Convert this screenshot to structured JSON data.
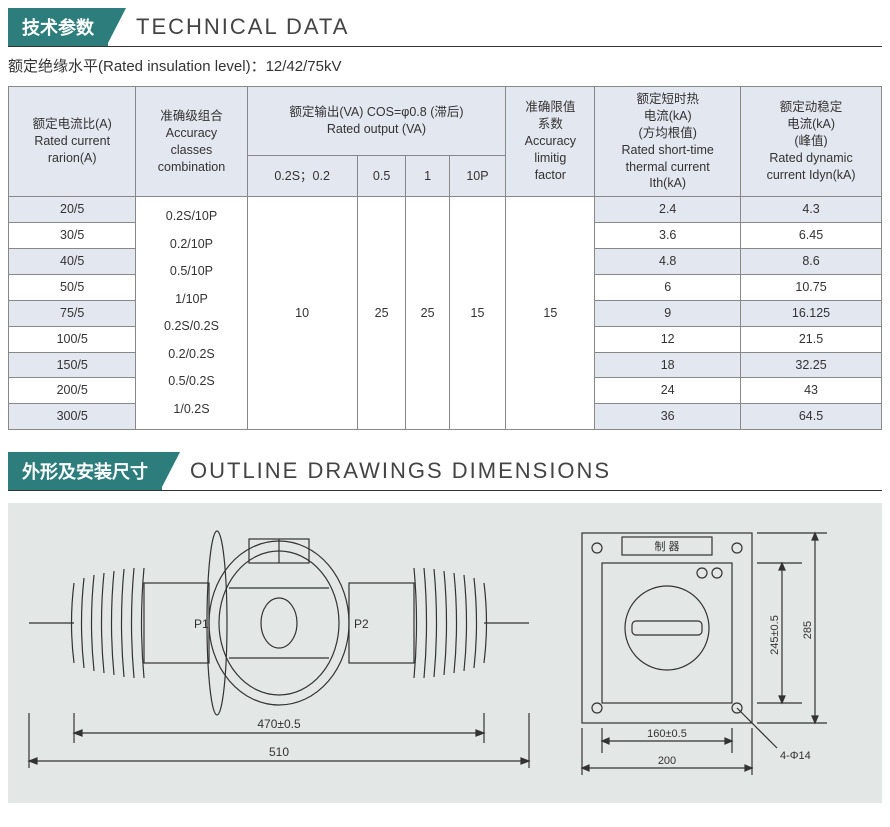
{
  "section1": {
    "tab_cn": "技术参数",
    "title_en": "TECHNICAL DATA",
    "insulation_label": "额定绝缘水平(Rated insulation level)：12/42/75kV"
  },
  "table": {
    "headers": {
      "col1": "额定电流比(A)\nRated current\nrarion(A)",
      "col2": "准确级组合\nAccuracy\nclasses\ncombination",
      "col3_top": "额定输出(VA) COS=φ0.8 (滞后)\nRated output (VA)",
      "col3_a": "0.2S；0.2",
      "col3_b": "0.5",
      "col3_c": "1",
      "col3_d": "10P",
      "col4": "准确限值\n系数\nAccuracy\nlimitig\nfactor",
      "col5": "额定短时热\n电流(kA)\n(方均根值)\nRated short-time\nthermal current\nIth(kA)",
      "col6": "额定动稳定\n电流(kA)\n(峰值)\nRated dynamic\ncurrent Idyn(kA)"
    },
    "accuracy_classes": "0.2S/10P\n0.2/10P\n0.5/10P\n1/10P\n0.2S/0.2S\n0.2/0.2S\n0.5/0.2S\n1/0.2S",
    "output_a": "10",
    "output_b": "25",
    "output_c": "25",
    "output_d": "15",
    "factor": "15",
    "rows": [
      {
        "ratio": "20/5",
        "ith": "2.4",
        "idyn": "4.3"
      },
      {
        "ratio": "30/5",
        "ith": "3.6",
        "idyn": "6.45"
      },
      {
        "ratio": "40/5",
        "ith": "4.8",
        "idyn": "8.6"
      },
      {
        "ratio": "50/5",
        "ith": "6",
        "idyn": "10.75"
      },
      {
        "ratio": "75/5",
        "ith": "9",
        "idyn": "16.125"
      },
      {
        "ratio": "100/5",
        "ith": "12",
        "idyn": "21.5"
      },
      {
        "ratio": "150/5",
        "ith": "18",
        "idyn": "32.25"
      },
      {
        "ratio": "200/5",
        "ith": "24",
        "idyn": "43"
      },
      {
        "ratio": "300/5",
        "ith": "36",
        "idyn": "64.5"
      }
    ],
    "colors": {
      "header_bg": "#e3e7ef",
      "stripe_bg": "#e3e7ef",
      "border": "#888888"
    }
  },
  "section2": {
    "tab_cn": "外形及安装尺寸",
    "title_en": "OUTLINE  DRAWINGS  DIMENSIONS"
  },
  "drawings": {
    "bg": "#e3e7e6",
    "stroke": "#333333",
    "front": {
      "p1": "P1",
      "p2": "P2",
      "dim_inner": "470±0.5",
      "dim_outer": "510"
    },
    "side": {
      "label_top": "制 器",
      "dim_w_inner": "160±0.5",
      "dim_w_outer": "200",
      "dim_h_inner": "245±0.5",
      "dim_h_outer": "285",
      "holes": "4-Φ14"
    }
  }
}
